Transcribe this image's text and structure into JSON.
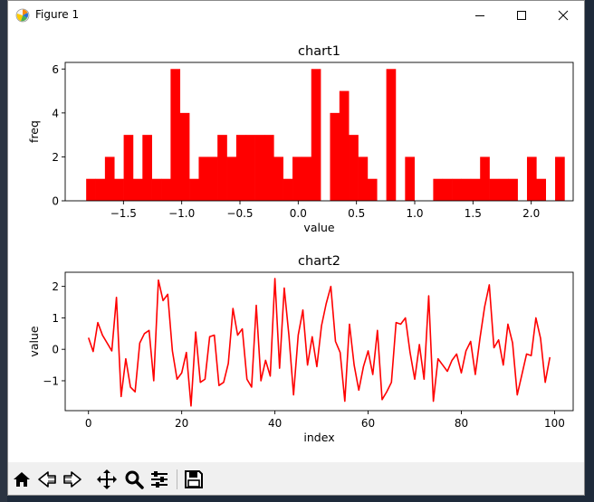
{
  "window": {
    "title": "Figure 1"
  },
  "toolbar": {
    "buttons": [
      {
        "name": "home-button",
        "icon": "home-icon"
      },
      {
        "name": "back-button",
        "icon": "back-arrow-icon"
      },
      {
        "name": "forward-button",
        "icon": "forward-arrow-icon"
      },
      {
        "name": "pan-button",
        "icon": "move-icon"
      },
      {
        "name": "zoom-button",
        "icon": "search-icon"
      },
      {
        "name": "configure-subplots-button",
        "icon": "sliders-icon"
      },
      {
        "name": "save-button",
        "icon": "save-icon"
      }
    ]
  },
  "colors": {
    "series": "#ff0000"
  },
  "chart_data": [
    {
      "type": "bar",
      "title": "chart1",
      "xlabel": "value",
      "ylabel": "freq",
      "xlim": [
        -2.0,
        2.36
      ],
      "ylim": [
        0,
        6.3
      ],
      "xticks": [
        -1.5,
        -1.0,
        -0.5,
        0.0,
        0.5,
        1.0,
        1.5,
        2.0
      ],
      "xtick_labels": [
        "−1.5",
        "−1.0",
        "−0.5",
        "0.0",
        "0.5",
        "1.0",
        "1.5",
        "2.0"
      ],
      "yticks": [
        0,
        2,
        4,
        6
      ],
      "ytick_labels": [
        "0",
        "2",
        "4",
        "6"
      ],
      "bin_start": -1.82,
      "bin_width": 0.0805,
      "values": [
        1,
        1,
        2,
        1,
        3,
        1,
        3,
        1,
        1,
        6,
        4,
        1,
        2,
        2,
        3,
        2,
        3,
        3,
        3,
        3,
        2,
        1,
        2,
        2,
        6,
        0,
        4,
        5,
        3,
        2,
        1,
        0,
        6,
        0,
        2,
        0,
        0,
        1,
        1,
        1,
        1,
        1,
        2,
        1,
        1,
        1,
        0,
        2,
        1,
        0,
        2
      ]
    },
    {
      "type": "line",
      "title": "chart2",
      "xlabel": "index",
      "ylabel": "value",
      "xlim": [
        -5,
        104
      ],
      "ylim": [
        -1.95,
        2.45
      ],
      "xticks": [
        0,
        20,
        40,
        60,
        80,
        100
      ],
      "xtick_labels": [
        "0",
        "20",
        "40",
        "60",
        "80",
        "100"
      ],
      "yticks": [
        -1,
        0,
        1,
        2
      ],
      "ytick_labels": [
        "−1",
        "0",
        "1",
        "2"
      ],
      "x_start": 0,
      "values": [
        0.37,
        -0.07,
        0.85,
        0.45,
        0.2,
        -0.05,
        1.65,
        -1.5,
        -0.3,
        -1.2,
        -1.35,
        0.2,
        0.5,
        0.6,
        -1.0,
        2.2,
        1.55,
        1.75,
        -0.05,
        -0.95,
        -0.75,
        -0.1,
        -1.8,
        0.55,
        -1.05,
        -0.95,
        0.4,
        0.45,
        -1.15,
        -1.05,
        -0.45,
        1.3,
        0.45,
        0.65,
        -0.95,
        -1.2,
        1.4,
        -1.0,
        -0.35,
        -0.85,
        2.25,
        -0.6,
        1.95,
        0.45,
        -1.45,
        0.45,
        1.25,
        -0.5,
        0.4,
        -0.55,
        0.75,
        1.45,
        2.0,
        0.25,
        -0.1,
        -1.65,
        0.8,
        -0.5,
        -1.3,
        -0.55,
        -0.05,
        -0.8,
        0.6,
        -1.6,
        -1.35,
        -1.05,
        0.85,
        0.8,
        1.0,
        -0.1,
        -0.95,
        0.15,
        -0.95,
        1.7,
        -1.65,
        -0.3,
        -0.5,
        -0.7,
        -0.35,
        -0.15,
        -0.75,
        -0.05,
        0.25,
        -0.8,
        0.35,
        1.35,
        2.05,
        0.05,
        0.3,
        -0.5,
        0.8,
        0.2,
        -1.45,
        -0.8,
        -0.15,
        -0.2,
        1.0,
        0.35,
        -1.05,
        -0.25
      ]
    }
  ]
}
